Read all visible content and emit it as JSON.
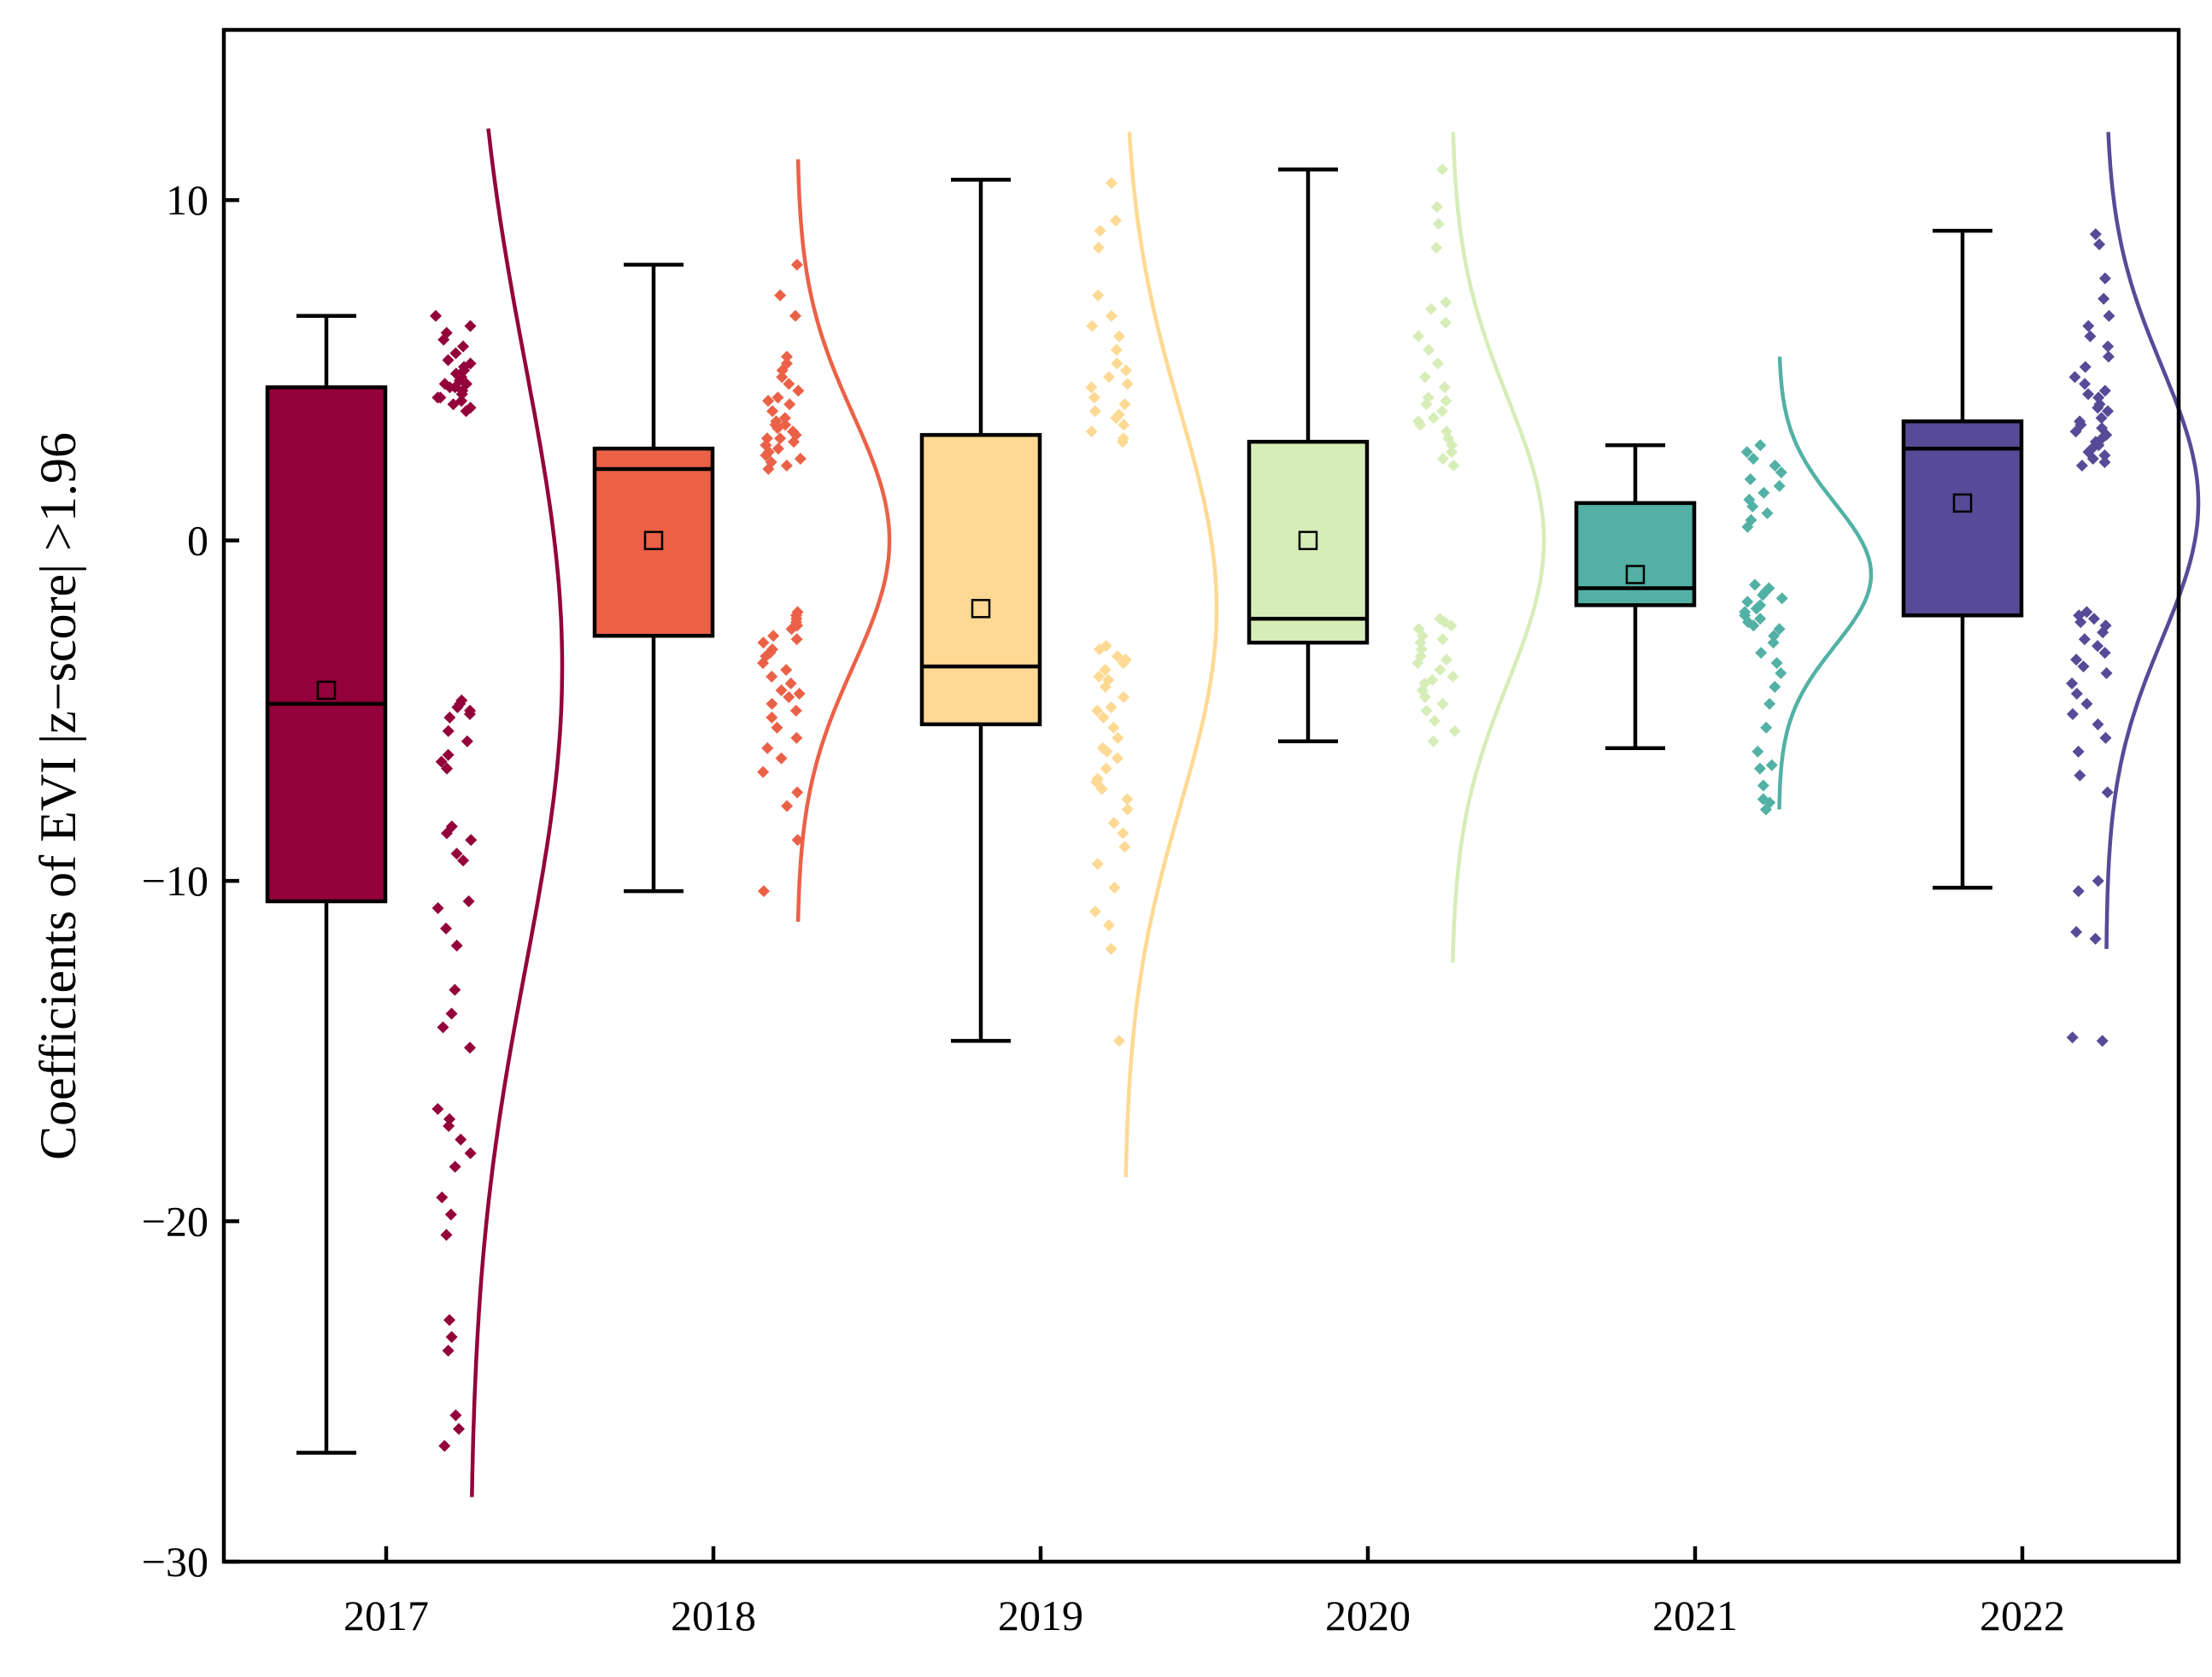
{
  "chart_data": {
    "type": "box",
    "title": "",
    "xlabel": "",
    "ylabel": "Coefficients of EVI |z−score| >1.96",
    "ylim": [
      -30,
      15
    ],
    "yticks": [
      10,
      0,
      -10,
      -20,
      -30
    ],
    "ytick_labels": [
      "10",
      "0",
      "−10",
      "−20",
      "−30"
    ],
    "categories": [
      "2017",
      "2018",
      "2019",
      "2020",
      "2021",
      "2022"
    ],
    "colors": [
      "#93003A",
      "#EB6147",
      "#FDD993",
      "#D6EDB8",
      "#52B1A4",
      "#574A97"
    ],
    "series": [
      {
        "name": "2017",
        "whisker_low": -26.8,
        "q1": -10.6,
        "median": -4.8,
        "q3": 4.5,
        "whisker_high": 6.6,
        "mean": -4.4,
        "density_mean": -3.7,
        "density_sd": 8.8,
        "density_range": [
          -28.1,
          12.1
        ],
        "points": [
          6.6,
          6.3,
          6.1,
          5.9,
          5.7,
          5.5,
          5.3,
          5.1,
          5.0,
          4.9,
          4.8,
          4.7,
          4.6,
          4.6,
          4.5,
          4.4,
          4.3,
          4.2,
          4.1,
          4.0,
          3.9,
          3.8,
          4.2,
          4.5,
          5.2,
          -4.7,
          -4.8,
          -4.9,
          -5.0,
          -5.1,
          -5.2,
          -5.6,
          -5.9,
          -6.3,
          -6.5,
          -6.7,
          -8.4,
          -8.6,
          -8.8,
          -9.2,
          -9.4,
          -10.6,
          -10.8,
          -11.4,
          -11.9,
          -13.2,
          -13.9,
          -14.3,
          -14.9,
          -16.7,
          -17.0,
          -17.2,
          -17.6,
          -18.0,
          -18.4,
          -19.3,
          -19.8,
          -20.4,
          -22.9,
          -23.4,
          -23.8,
          -25.7,
          -26.1,
          -26.6
        ]
      },
      {
        "name": "2018",
        "whisker_low": -10.3,
        "q1": -2.8,
        "median": 2.1,
        "q3": 2.7,
        "whisker_high": 8.1,
        "mean": 0.0,
        "density_mean": 0.0,
        "density_sd": 3.7,
        "density_range": [
          -11.2,
          11.2
        ],
        "points": [
          8.1,
          7.2,
          6.6,
          5.4,
          5.2,
          5.0,
          4.8,
          4.6,
          4.4,
          4.2,
          4.0,
          3.8,
          3.6,
          3.5,
          3.4,
          3.3,
          3.2,
          3.1,
          3.0,
          2.9,
          2.8,
          2.7,
          2.6,
          2.5,
          2.4,
          2.3,
          2.2,
          2.1,
          3.0,
          3.4,
          4.1,
          -2.1,
          -2.2,
          -2.3,
          -2.4,
          -2.5,
          -2.6,
          -2.8,
          -3.0,
          -3.2,
          -3.4,
          -3.6,
          -3.8,
          -4.0,
          -4.2,
          -4.4,
          -4.6,
          -4.8,
          -5.0,
          -5.2,
          -5.5,
          -5.8,
          -6.1,
          -6.4,
          -6.8,
          -7.4,
          -7.8,
          -8.8,
          -10.3,
          -2.9,
          -3.3,
          -4.5
        ]
      },
      {
        "name": "2019",
        "whisker_low": -14.7,
        "q1": -5.4,
        "median": -3.7,
        "q3": 3.1,
        "whisker_high": 10.6,
        "mean": -2.0,
        "density_mean": -2.0,
        "density_sd": 5.8,
        "density_range": [
          -18.7,
          12.0
        ],
        "points": [
          10.5,
          9.4,
          9.1,
          8.6,
          7.2,
          6.6,
          6.3,
          6.0,
          5.6,
          5.2,
          4.8,
          4.5,
          4.2,
          4.0,
          3.8,
          3.6,
          3.4,
          3.2,
          3.0,
          2.9,
          4.6,
          5.0,
          3.7,
          -3.1,
          -3.2,
          -3.4,
          -3.6,
          -3.8,
          -4.0,
          -4.3,
          -4.6,
          -4.9,
          -5.2,
          -5.5,
          -5.8,
          -6.1,
          -6.4,
          -6.7,
          -7.0,
          -7.3,
          -7.6,
          -7.9,
          -8.3,
          -8.6,
          -9.0,
          -9.5,
          -10.2,
          -10.9,
          -11.3,
          -12.0,
          -14.7,
          -3.5,
          -4.1,
          -5.0,
          -6.2,
          -7.1
        ]
      },
      {
        "name": "2020",
        "whisker_low": -5.9,
        "q1": -3.0,
        "median": -2.3,
        "q3": 2.9,
        "whisker_high": 10.9,
        "mean": 0.0,
        "density_mean": 0.0,
        "density_sd": 4.2,
        "density_range": [
          -12.4,
          12.0
        ],
        "points": [
          10.9,
          9.8,
          9.3,
          8.6,
          7.0,
          6.8,
          6.4,
          6.0,
          5.6,
          5.2,
          4.8,
          4.5,
          4.2,
          4.0,
          3.8,
          3.6,
          3.4,
          3.2,
          3.0,
          2.8,
          2.6,
          2.4,
          2.2,
          3.5,
          4.1,
          -2.3,
          -2.4,
          -2.5,
          -2.6,
          -2.8,
          -3.0,
          -3.2,
          -3.4,
          -3.6,
          -3.8,
          -4.0,
          -4.2,
          -4.4,
          -4.6,
          -4.8,
          -5.0,
          -5.3,
          -5.6,
          -5.9,
          -2.9,
          -3.5,
          -4.1
        ]
      },
      {
        "name": "2021",
        "whisker_low": -6.1,
        "q1": -1.9,
        "median": -1.4,
        "q3": 1.1,
        "whisker_high": 2.8,
        "mean": -1.0,
        "density_mean": -1.0,
        "density_sd": 2.1,
        "density_range": [
          -7.9,
          5.4
        ],
        "points": [
          2.8,
          2.6,
          2.4,
          2.2,
          2.0,
          1.8,
          1.6,
          1.4,
          1.2,
          1.0,
          0.8,
          0.6,
          0.4,
          -1.3,
          -1.4,
          -1.5,
          -1.6,
          -1.7,
          -1.8,
          -1.9,
          -2.0,
          -2.1,
          -2.2,
          -2.3,
          -2.4,
          -2.5,
          -2.6,
          -2.8,
          -3.0,
          -3.3,
          -3.6,
          -3.9,
          -4.3,
          -4.8,
          -5.5,
          -6.2,
          -6.7,
          -7.2,
          -7.6,
          -7.9,
          -6.6,
          -7.7
        ]
      },
      {
        "name": "2022",
        "whisker_low": -10.2,
        "q1": -2.2,
        "median": 2.7,
        "q3": 3.5,
        "whisker_high": 9.1,
        "mean": 1.1,
        "density_mean": 1.1,
        "density_sd": 4.0,
        "density_range": [
          -12.0,
          12.0
        ],
        "points": [
          9.0,
          8.7,
          7.7,
          7.1,
          6.6,
          6.3,
          6.0,
          5.7,
          5.4,
          5.1,
          4.8,
          4.6,
          4.4,
          4.2,
          4.0,
          3.8,
          3.6,
          3.5,
          3.4,
          3.3,
          3.2,
          3.1,
          3.0,
          2.9,
          2.8,
          2.7,
          2.6,
          2.5,
          2.4,
          2.3,
          2.2,
          3.9,
          4.3,
          -2.1,
          -2.2,
          -2.3,
          -2.4,
          -2.5,
          -2.7,
          -2.9,
          -3.1,
          -3.3,
          -3.5,
          -3.7,
          -3.9,
          -4.2,
          -4.5,
          -4.8,
          -5.1,
          -5.4,
          -5.8,
          -6.2,
          -6.9,
          -7.4,
          -10.0,
          -10.3,
          -11.5,
          -11.7,
          -14.6,
          -14.7
        ]
      }
    ]
  }
}
